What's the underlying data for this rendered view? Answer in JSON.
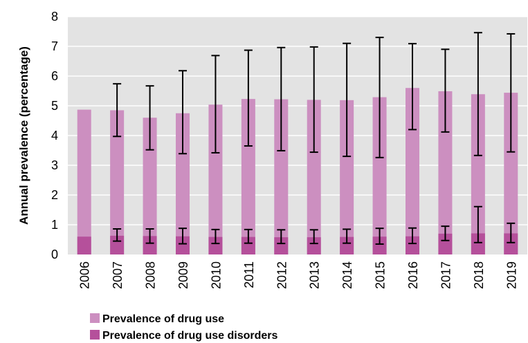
{
  "chart_data": {
    "type": "bar",
    "title": "",
    "xlabel": "",
    "ylabel": "Annual prevalence (percentage)",
    "ylim": [
      0,
      8
    ],
    "yticks": [
      0,
      1,
      2,
      3,
      4,
      5,
      6,
      7,
      8
    ],
    "grid": "horizontal",
    "legend_position": "bottom-left",
    "categories": [
      "2006",
      "2007",
      "2008",
      "2009",
      "2010",
      "2011",
      "2012",
      "2013",
      "2014",
      "2015",
      "2016",
      "2017",
      "2018",
      "2019"
    ],
    "series": [
      {
        "name": "Prevalence of drug use",
        "color": "#cc8fc0",
        "values": [
          4.87,
          4.85,
          4.6,
          4.75,
          5.04,
          5.23,
          5.22,
          5.2,
          5.19,
          5.29,
          5.6,
          5.49,
          5.39,
          5.44
        ],
        "error_low": [
          null,
          3.97,
          3.52,
          3.39,
          3.42,
          3.65,
          3.49,
          3.44,
          3.3,
          3.26,
          4.2,
          4.12,
          3.33,
          3.45
        ],
        "error_high": [
          null,
          5.74,
          5.67,
          6.18,
          6.69,
          6.87,
          6.96,
          6.98,
          7.1,
          7.3,
          7.09,
          6.9,
          7.46,
          7.42
        ]
      },
      {
        "name": "Prevalence of drug use disorders",
        "color": "#b5509b",
        "values": [
          0.6,
          0.63,
          0.62,
          0.61,
          0.59,
          0.59,
          0.58,
          0.58,
          0.59,
          0.6,
          0.61,
          0.7,
          0.71,
          0.71
        ],
        "error_low": [
          null,
          0.45,
          0.38,
          0.36,
          0.37,
          0.38,
          0.37,
          0.37,
          0.38,
          0.35,
          0.37,
          0.47,
          0.4,
          0.4
        ],
        "error_high": [
          null,
          0.86,
          0.86,
          0.88,
          0.84,
          0.84,
          0.83,
          0.83,
          0.85,
          0.88,
          0.89,
          0.95,
          1.61,
          1.05
        ]
      }
    ]
  }
}
